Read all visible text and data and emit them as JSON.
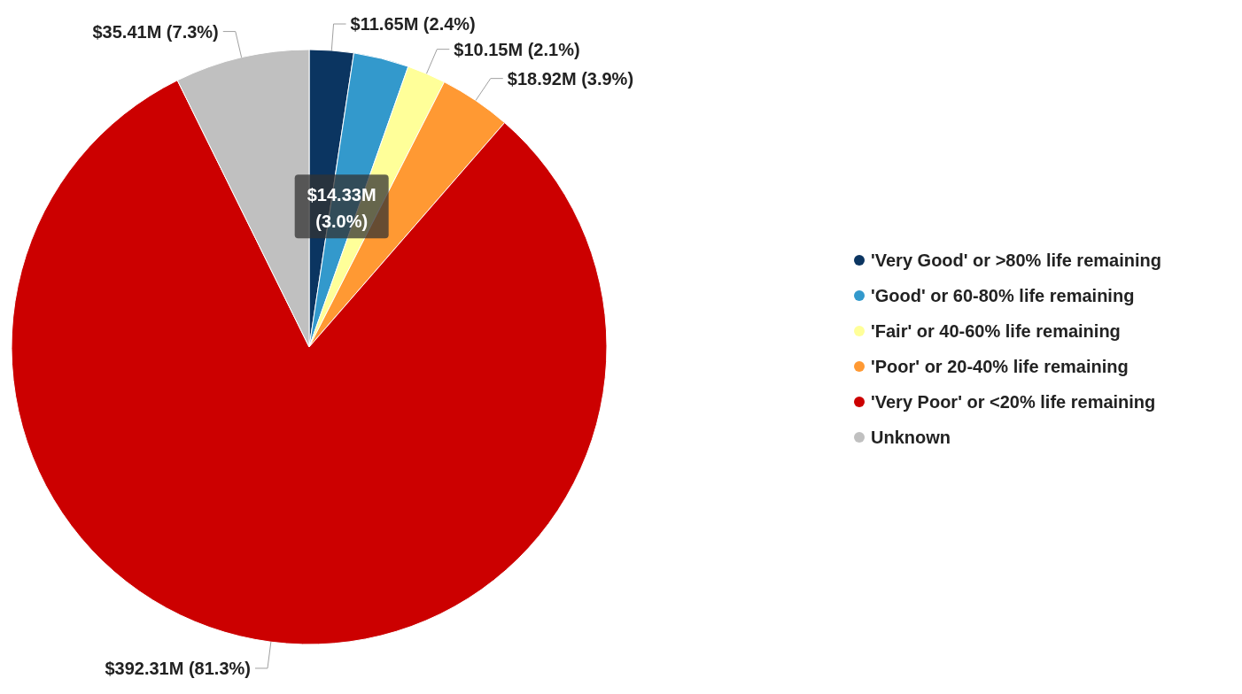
{
  "chart_data": {
    "type": "pie",
    "categories": [
      "'Very Good' or >80% life remaining",
      "'Good' or 60-80% life remaining",
      "'Fair' or 40-60% life remaining",
      "'Poor' or 20-40% life remaining",
      "'Very Poor' or <20% life remaining",
      "Unknown"
    ],
    "values": [
      2.4,
      3.0,
      2.1,
      3.9,
      81.3,
      7.3
    ],
    "value_labels": [
      "$11.65M (2.4%)",
      "$14.33M (3.0%)",
      "$10.15M (2.1%)",
      "$18.92M (3.9%)",
      "$392.31M (81.3%)",
      "$35.41M (7.3%)"
    ],
    "colors": [
      "#0b3561",
      "#3399cc",
      "#ffff99",
      "#ff9933",
      "#cc0000",
      "#c0c0c0"
    ],
    "legend": "right"
  }
}
